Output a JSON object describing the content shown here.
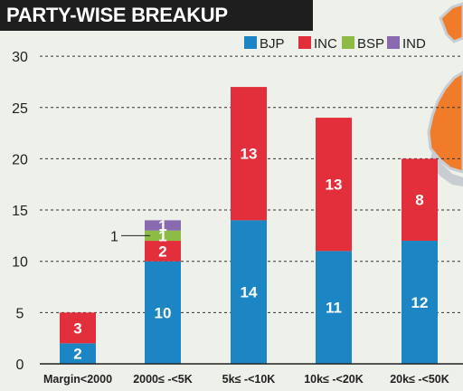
{
  "title": "PARTY-WISE BREAKUP",
  "colors": {
    "BJP": "#1b86c3",
    "INC": "#e32f3b",
    "BSP": "#8dbb45",
    "IND": "#8a6aae",
    "map_fill": "#f07c2a",
    "map_border": "#c8cdd2"
  },
  "chart_data": {
    "type": "bar",
    "stacked": true,
    "title": "PARTY-WISE BREAKUP",
    "xlabel": "",
    "ylabel": "",
    "ylim": [
      0,
      30
    ],
    "yticks": [
      0,
      5,
      10,
      15,
      20,
      25,
      30
    ],
    "grid": true,
    "legend_position": "top-right",
    "categories": [
      "Margin<2000",
      "2000≤ -<5K",
      "5k≤ -<10K",
      "10k≤ -<20K",
      "20k≤ -<50K"
    ],
    "series": [
      {
        "name": "BJP",
        "values": [
          2,
          10,
          14,
          11,
          12
        ]
      },
      {
        "name": "INC",
        "values": [
          3,
          2,
          13,
          13,
          8
        ]
      },
      {
        "name": "BSP",
        "values": [
          0,
          1,
          0,
          0,
          0
        ]
      },
      {
        "name": "IND",
        "values": [
          0,
          1,
          0,
          0,
          0
        ]
      }
    ],
    "annotations": [
      {
        "category": "2000≤ -<5K",
        "series": "BSP",
        "text": "1"
      }
    ]
  }
}
